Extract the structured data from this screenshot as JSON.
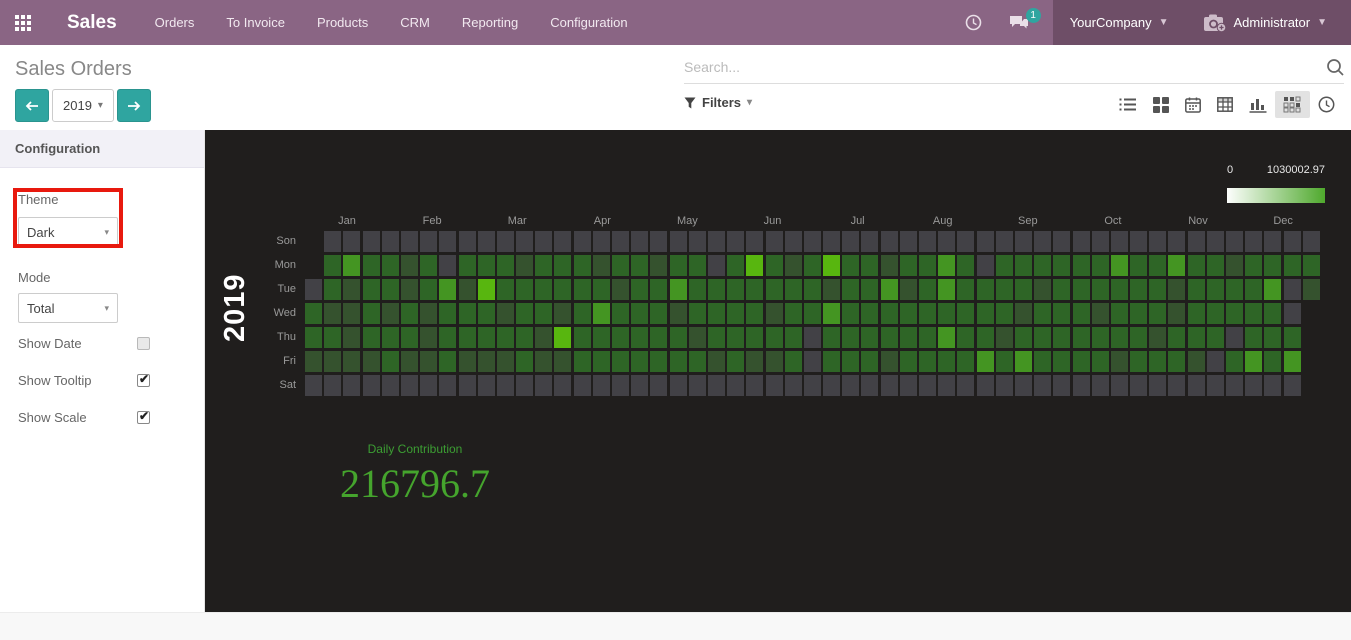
{
  "nav": {
    "app_title": "Sales",
    "menu": [
      "Orders",
      "To Invoice",
      "Products",
      "CRM",
      "Reporting",
      "Configuration"
    ],
    "message_badge": "1",
    "company": "YourCompany",
    "user": "Administrator"
  },
  "control_panel": {
    "title": "Sales Orders",
    "year": "2019",
    "search_placeholder": "Search...",
    "filters_label": "Filters"
  },
  "sidebar": {
    "header": "Configuration",
    "theme_label": "Theme",
    "theme_value": "Dark",
    "mode_label": "Mode",
    "mode_value": "Total",
    "toggles": [
      {
        "label": "Show Date",
        "checked": false
      },
      {
        "label": "Show Tooltip",
        "checked": true
      },
      {
        "label": "Show Scale",
        "checked": true
      }
    ]
  },
  "chart_data": {
    "type": "heatmap",
    "title": "2019",
    "year_label": "2019",
    "months": [
      "Jan",
      "Feb",
      "Mar",
      "Apr",
      "May",
      "Jun",
      "Jul",
      "Aug",
      "Sep",
      "Oct",
      "Nov",
      "Dec"
    ],
    "days": [
      "Son",
      "Mon",
      "Tue",
      "Wed",
      "Thu",
      "Fri",
      "Sat"
    ],
    "scale_min": "0",
    "scale_max": "1030002.97",
    "daily_contribution_label": "Daily Contribution",
    "daily_contribution_value": "216796.7",
    "legend_position": "top-right",
    "value_range": [
      0,
      1030002.97
    ],
    "level_colors": {
      "0": "transparent",
      "1": "#424146",
      "2": "#35522e",
      "3": "#2e6526",
      "4": "#449522",
      "5": "#58b60f"
    },
    "level_meaning": {
      "0": "outside-year",
      "1": "no-sales",
      "2": "low",
      "3": "medium",
      "4": "high",
      "5": "peak"
    },
    "weeks": 53,
    "rows": [
      "01111111111111111111111111111111111111111111111111111",
      "03433231333233323323313532353323343133333343343323333",
      "13233234253333332334333333323342343333233333323333412",
      "32232323332332343332333323343333333332333233323333310",
      "33233323333325333333233333133333343323333333233313330",
      "22223223222322333333323223133323333434333323332134340",
      "11111111111111111111111111111111111111111111111111110"
    ]
  }
}
